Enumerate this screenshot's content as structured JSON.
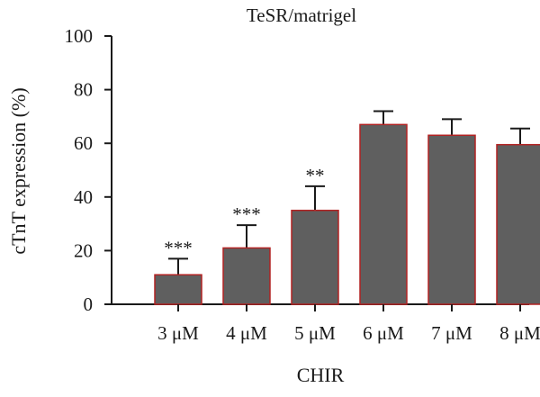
{
  "chart_data": {
    "type": "bar",
    "title": "TeSR/matrigel",
    "xlabel": "CHIR",
    "ylabel": "cTnT expression (%)",
    "ylim": [
      0,
      100
    ],
    "yticks": [
      0,
      20,
      40,
      60,
      80,
      100
    ],
    "categories": [
      "3 μM",
      "4 μM",
      "5 μM",
      "6 μM",
      "7 μM",
      "8 μM"
    ],
    "values": [
      11,
      21,
      35,
      67,
      63,
      59.5
    ],
    "errors": [
      6,
      8.5,
      9,
      5,
      6,
      6
    ],
    "significance": [
      "***",
      "***",
      "**",
      "",
      "",
      ""
    ],
    "bar_color": "#5f5f5f",
    "bar_edge_color": "#b22222",
    "grid": false,
    "legend": "none"
  }
}
